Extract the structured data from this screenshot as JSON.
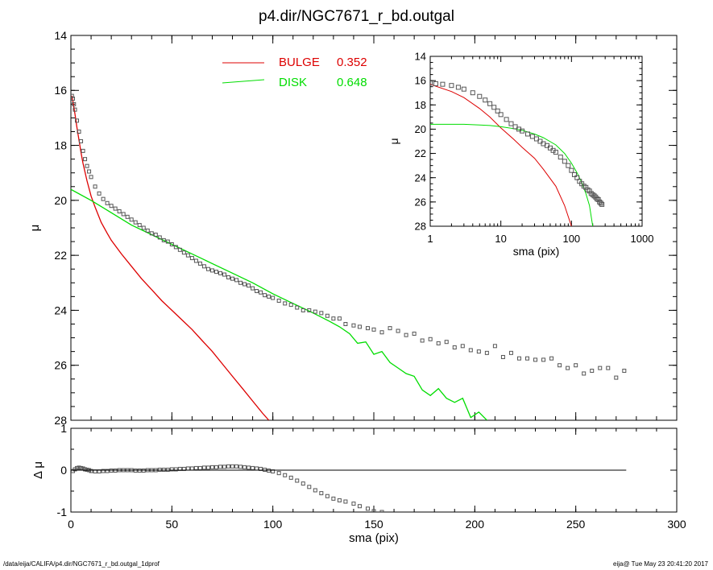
{
  "title": "p4.dir/NGC7671_r_bd.outgal",
  "footer": {
    "left": "/data/eija/CALIFA/p4.dir/NGC7671_r_bd.outgal_1dprof",
    "right": "eija@  Tue May 23 20:41:20 2017"
  },
  "colors": {
    "bulge": "#dd0000",
    "disk": "#00dd00",
    "data": "#555555",
    "axis": "#000000"
  },
  "chart_data": [
    {
      "type": "scatter",
      "xlabel": "",
      "ylabel": "μ",
      "xlim": [
        0,
        300
      ],
      "ylim": [
        28,
        14
      ],
      "x_ticks": [
        0,
        50,
        100,
        150,
        200,
        250,
        300
      ],
      "y_ticks": [
        14,
        16,
        18,
        20,
        22,
        24,
        26,
        28
      ],
      "legend": [
        {
          "label": "BULGE",
          "value": "0.352",
          "color": "#dd0000"
        },
        {
          "label": "DISK",
          "value": "0.648",
          "color": "#00dd00"
        }
      ],
      "series": [
        {
          "name": "BULGE",
          "style": "line",
          "x": [
            0.5,
            1,
            2,
            3,
            4,
            5,
            6,
            8,
            10,
            12,
            15,
            18,
            20,
            25,
            30,
            35,
            40,
            45,
            50,
            55,
            60,
            65,
            70,
            75,
            80,
            85,
            90,
            95,
            98
          ],
          "y": [
            16.2,
            16.4,
            16.85,
            17.35,
            17.8,
            18.25,
            18.65,
            19.3,
            19.85,
            20.25,
            20.8,
            21.2,
            21.45,
            21.95,
            22.4,
            22.85,
            23.25,
            23.65,
            24.0,
            24.35,
            24.7,
            25.1,
            25.5,
            25.95,
            26.4,
            26.85,
            27.3,
            27.75,
            28.0
          ]
        },
        {
          "name": "DISK",
          "style": "line",
          "x": [
            0,
            10,
            20,
            30,
            40,
            50,
            60,
            70,
            80,
            90,
            100,
            110,
            120,
            128,
            133,
            138,
            142,
            146,
            150,
            154,
            158,
            162,
            166,
            170,
            174,
            178,
            182,
            186,
            190,
            194,
            198,
            202,
            206
          ],
          "y": [
            19.6,
            20.0,
            20.45,
            20.9,
            21.25,
            21.6,
            21.95,
            22.3,
            22.65,
            23.0,
            23.4,
            23.75,
            24.1,
            24.4,
            24.6,
            24.85,
            25.2,
            25.15,
            25.6,
            25.5,
            25.9,
            26.1,
            26.3,
            26.4,
            26.9,
            27.1,
            26.85,
            27.2,
            27.35,
            27.2,
            27.9,
            27.7,
            28.0
          ]
        },
        {
          "name": "",
          "style": "markers",
          "x": [
            0.5,
            1,
            1.5,
            2,
            3,
            4,
            5,
            6,
            7,
            8,
            9,
            10,
            12,
            14,
            16,
            18,
            20,
            22,
            24,
            26,
            28,
            30,
            32,
            34,
            36,
            38,
            40,
            42,
            44,
            46,
            48,
            50,
            52,
            54,
            56,
            58,
            60,
            62,
            64,
            66,
            68,
            70,
            72,
            74,
            76,
            78,
            80,
            82,
            84,
            86,
            88,
            90,
            92,
            94,
            96,
            98,
            100,
            103,
            106,
            109,
            112,
            115,
            118,
            121,
            124,
            127,
            130,
            133,
            136,
            140,
            143,
            147,
            150,
            154,
            158,
            162,
            166,
            170,
            174,
            178,
            182,
            186,
            190,
            194,
            198,
            202,
            206,
            210,
            214,
            218,
            222,
            226,
            230,
            234,
            238,
            242,
            246,
            250,
            254,
            258,
            262,
            266,
            270,
            274
          ],
          "y": [
            16.2,
            16.3,
            16.5,
            16.7,
            17.1,
            17.5,
            17.85,
            18.2,
            18.5,
            18.75,
            18.95,
            19.15,
            19.5,
            19.75,
            19.95,
            20.1,
            20.2,
            20.3,
            20.4,
            20.5,
            20.6,
            20.7,
            20.8,
            20.9,
            21.0,
            21.1,
            21.2,
            21.25,
            21.35,
            21.45,
            21.5,
            21.6,
            21.7,
            21.8,
            21.9,
            22.0,
            22.1,
            22.2,
            22.3,
            22.4,
            22.5,
            22.55,
            22.6,
            22.65,
            22.7,
            22.8,
            22.85,
            22.9,
            23.0,
            23.05,
            23.1,
            23.2,
            23.3,
            23.35,
            23.45,
            23.5,
            23.55,
            23.65,
            23.75,
            23.8,
            23.9,
            24.0,
            24.0,
            24.05,
            24.1,
            24.2,
            24.3,
            24.3,
            24.5,
            24.55,
            24.6,
            24.65,
            24.7,
            24.8,
            24.65,
            24.75,
            24.9,
            24.85,
            25.1,
            25.05,
            25.2,
            25.15,
            25.35,
            25.3,
            25.45,
            25.5,
            25.55,
            25.3,
            25.7,
            25.55,
            25.75,
            25.75,
            25.8,
            25.8,
            25.75,
            26.0,
            26.1,
            26.0,
            26.3,
            26.2,
            26.1,
            26.1,
            26.45,
            26.2
          ]
        }
      ]
    },
    {
      "type": "scatter",
      "xlabel": "sma (pix)",
      "ylabel": "Δ μ",
      "xlim": [
        0,
        300
      ],
      "ylim": [
        -1,
        1
      ],
      "x_ticks": [
        0,
        50,
        100,
        150,
        200,
        250,
        300
      ],
      "y_ticks": [
        -1,
        0,
        1
      ],
      "series": [
        {
          "name": "",
          "style": "markers",
          "x": [
            1,
            2,
            3,
            4,
            5,
            6,
            7,
            8,
            9,
            10,
            12,
            14,
            16,
            18,
            20,
            22,
            24,
            26,
            28,
            30,
            32,
            34,
            36,
            38,
            40,
            42,
            44,
            46,
            48,
            50,
            52,
            54,
            56,
            58,
            60,
            62,
            64,
            66,
            68,
            70,
            72,
            74,
            76,
            78,
            80,
            82,
            84,
            86,
            88,
            90,
            92,
            94,
            96,
            98,
            100,
            103,
            106,
            109,
            112,
            115,
            118,
            121,
            124,
            127,
            130,
            133,
            136,
            140,
            143,
            147,
            150,
            154
          ],
          "y": [
            -0.02,
            0.02,
            0.05,
            0.06,
            0.05,
            0.04,
            0.02,
            0.01,
            0.0,
            -0.02,
            -0.03,
            -0.03,
            -0.02,
            -0.02,
            -0.01,
            -0.01,
            0.0,
            0.0,
            0.0,
            0.0,
            -0.01,
            -0.01,
            -0.01,
            0.0,
            0.0,
            0.0,
            0.01,
            0.01,
            0.01,
            0.02,
            0.02,
            0.03,
            0.03,
            0.04,
            0.04,
            0.05,
            0.05,
            0.06,
            0.06,
            0.07,
            0.07,
            0.08,
            0.08,
            0.09,
            0.09,
            0.09,
            0.08,
            0.07,
            0.06,
            0.05,
            0.04,
            0.03,
            0.01,
            -0.01,
            -0.03,
            -0.07,
            -0.12,
            -0.18,
            -0.25,
            -0.32,
            -0.4,
            -0.48,
            -0.55,
            -0.62,
            -0.68,
            -0.72,
            -0.75,
            -0.8,
            -0.86,
            -0.92,
            -0.98,
            -1.0
          ]
        },
        {
          "name": "",
          "style": "line",
          "x": [
            0,
            275
          ],
          "y": [
            0,
            0
          ]
        }
      ]
    },
    {
      "type": "scatter",
      "xlabel": "sma (pix)",
      "ylabel": "μ",
      "xscale": "log",
      "xlim": [
        1,
        1000
      ],
      "ylim": [
        28,
        14
      ],
      "x_ticks": [
        1,
        10,
        100,
        1000
      ],
      "x_tick_labels": [
        "1",
        "10",
        "100",
        "1000"
      ],
      "y_ticks": [
        14,
        16,
        18,
        20,
        22,
        24,
        26,
        28
      ],
      "series": [
        {
          "name": "BULGE",
          "style": "line",
          "x": [
            1,
            2,
            3,
            5,
            7,
            10,
            15,
            20,
            30,
            40,
            60,
            80,
            100
          ],
          "y": [
            16.3,
            16.9,
            17.4,
            18.3,
            19.0,
            19.9,
            20.8,
            21.5,
            22.4,
            23.3,
            24.7,
            26.3,
            28.0
          ]
        },
        {
          "name": "DISK",
          "style": "line",
          "x": [
            1,
            2,
            3,
            5,
            7,
            10,
            15,
            20,
            30,
            40,
            60,
            80,
            100,
            120,
            140,
            160,
            180,
            200
          ],
          "y": [
            19.6,
            19.6,
            19.6,
            19.65,
            19.7,
            19.8,
            19.95,
            20.1,
            20.4,
            20.7,
            21.3,
            22.0,
            22.8,
            23.6,
            24.4,
            25.3,
            26.3,
            28.0
          ]
        },
        {
          "name": "",
          "style": "markers",
          "x": [
            1,
            1.2,
            1.5,
            2,
            2.5,
            3,
            4,
            5,
            6,
            7,
            8,
            9,
            10,
            12,
            14,
            16,
            18,
            20,
            24,
            28,
            32,
            36,
            40,
            45,
            50,
            55,
            60,
            70,
            80,
            90,
            100,
            110,
            120,
            130,
            140,
            150,
            160,
            170,
            180,
            190,
            200,
            210,
            220,
            230,
            240,
            250,
            260,
            270
          ],
          "y": [
            16.2,
            16.25,
            16.3,
            16.4,
            16.55,
            16.7,
            17.0,
            17.3,
            17.6,
            17.9,
            18.2,
            18.5,
            18.8,
            19.2,
            19.55,
            19.8,
            20.0,
            20.15,
            20.4,
            20.6,
            20.8,
            21.0,
            21.2,
            21.35,
            21.55,
            21.75,
            21.9,
            22.3,
            22.65,
            23.0,
            23.4,
            23.75,
            24.0,
            24.3,
            24.5,
            24.7,
            24.8,
            25.0,
            25.1,
            25.3,
            25.4,
            25.5,
            25.6,
            25.75,
            25.8,
            26.0,
            26.1,
            26.2
          ]
        }
      ]
    }
  ]
}
